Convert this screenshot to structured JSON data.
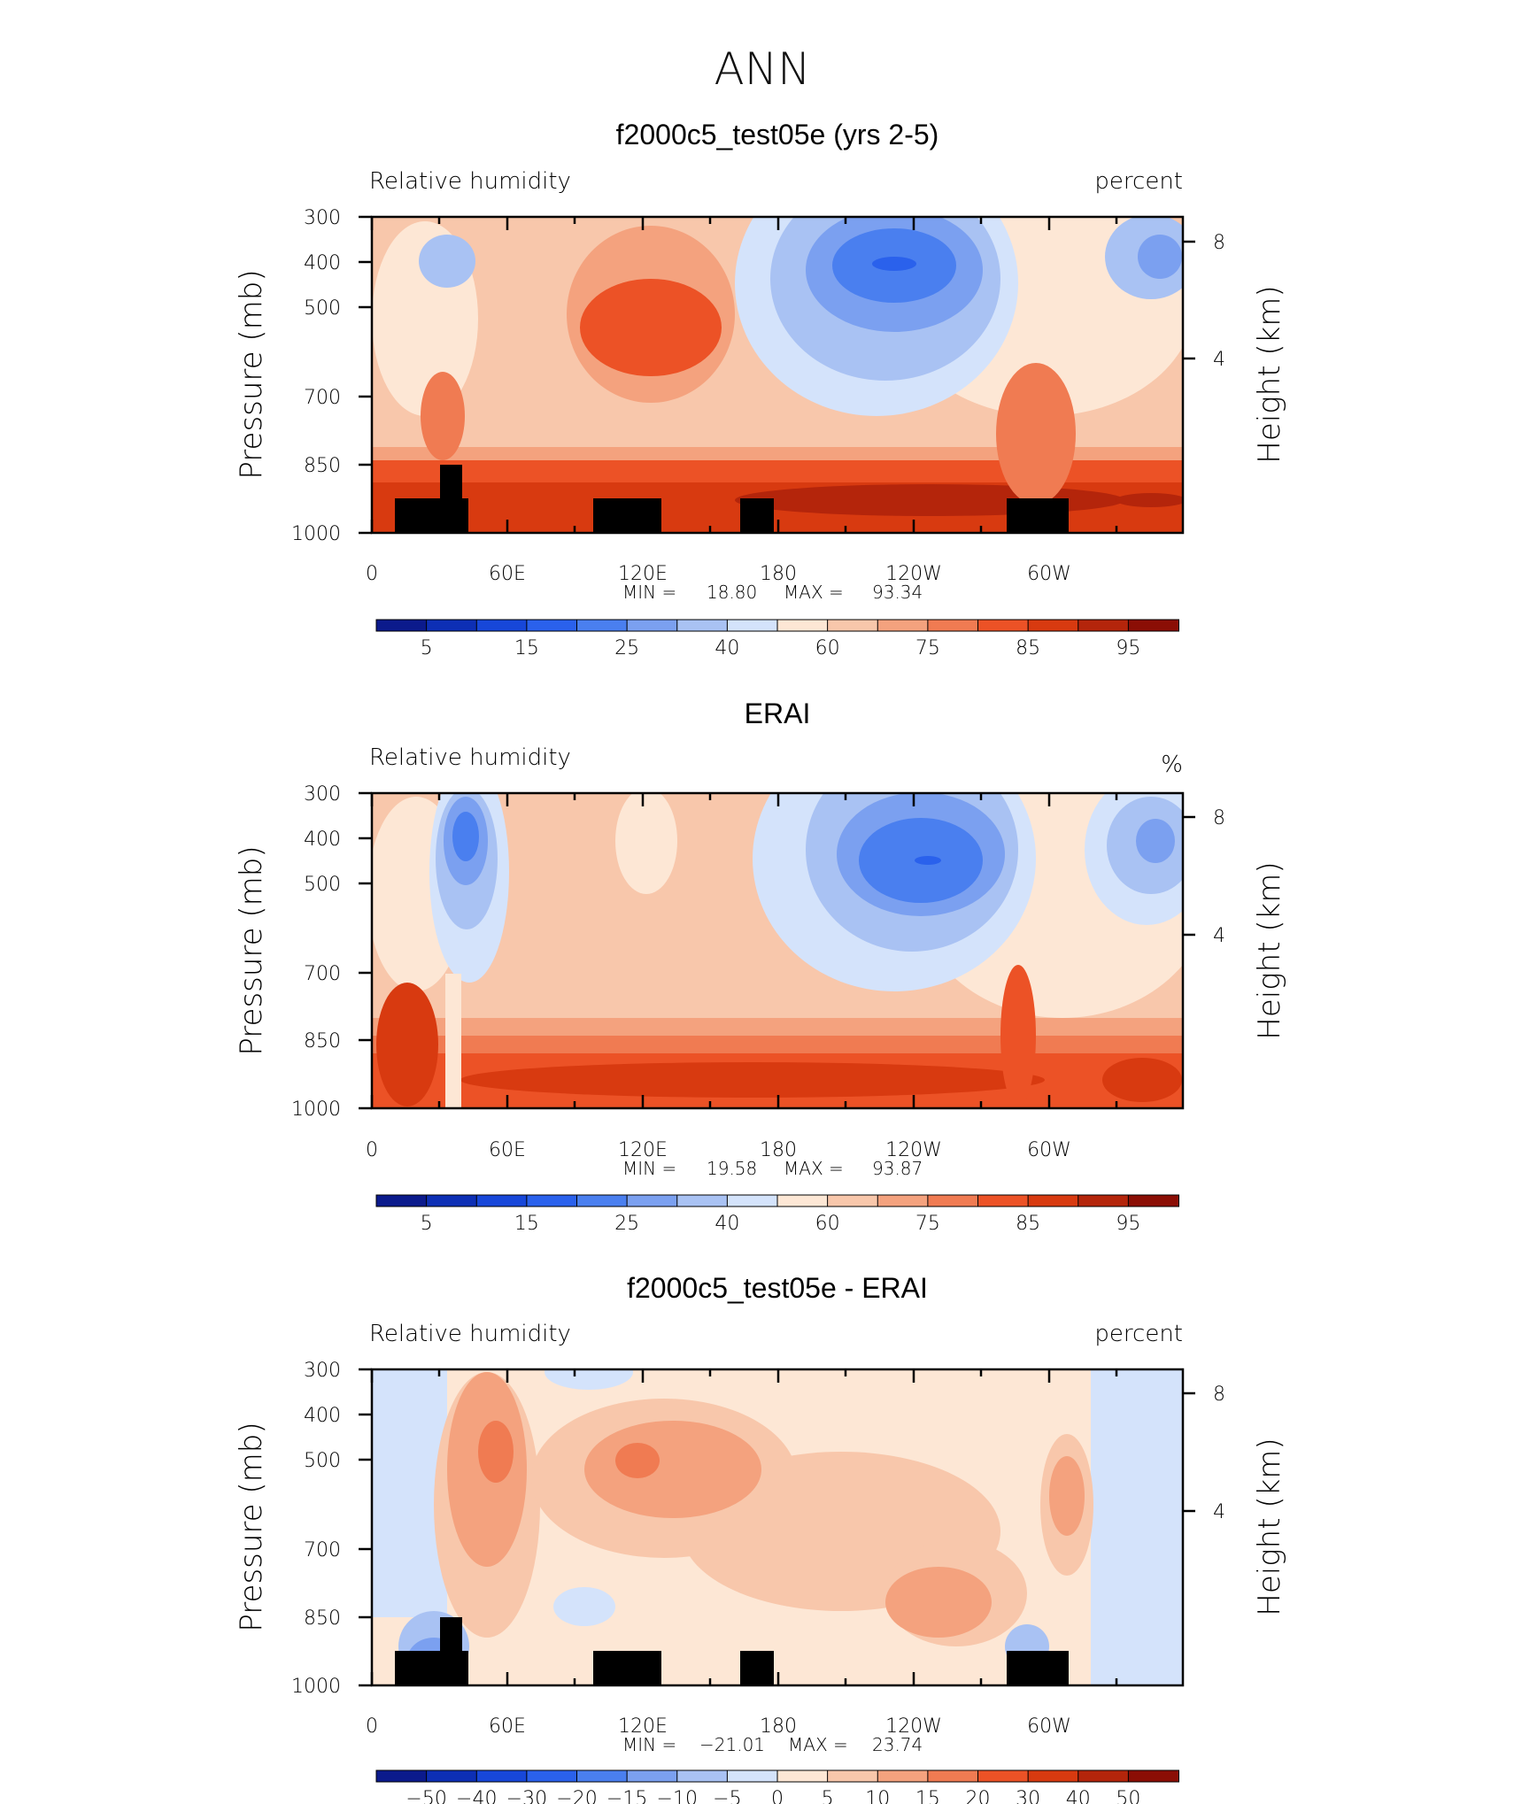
{
  "figure": {
    "title": "ANN"
  },
  "chart_data": [
    {
      "type": "heatmap",
      "title": "f2000c5_test05e (yrs 2-5)",
      "left_label": "Relative humidity",
      "right_label": "percent",
      "ylabel": "Pressure (mb)",
      "ylabel_right": "Height (km)",
      "x_ticks": [
        "0",
        "60E",
        "120E",
        "180",
        "120W",
        "60W"
      ],
      "y_ticks": [
        "300",
        "400",
        "500",
        "700",
        "850",
        "1000"
      ],
      "y_right_ticks": [
        "8",
        "4"
      ],
      "ylim": [
        1000,
        300
      ],
      "min_label": "MIN =",
      "min_value": "18.80",
      "max_label": "MAX =",
      "max_value": "93.34",
      "colorbar_labels": [
        "5",
        "15",
        "25",
        "40",
        "60",
        "75",
        "85",
        "95"
      ],
      "colorbar_colors": [
        "#0b1a8c",
        "#0d2fb5",
        "#1747d9",
        "#2a61ec",
        "#4a7fef",
        "#7ba0f0",
        "#a9c2f3",
        "#d4e3fb",
        "#fde7d5",
        "#f8c7ab",
        "#f4a27e",
        "#f07b52",
        "#ec5226",
        "#d83a10",
        "#b4250b",
        "#8b0e05"
      ]
    },
    {
      "type": "heatmap",
      "title": "ERAI",
      "left_label": "Relative humidity",
      "right_label": "%",
      "ylabel": "Pressure (mb)",
      "ylabel_right": "Height (km)",
      "x_ticks": [
        "0",
        "60E",
        "120E",
        "180",
        "120W",
        "60W"
      ],
      "y_ticks": [
        "300",
        "400",
        "500",
        "700",
        "850",
        "1000"
      ],
      "y_right_ticks": [
        "8",
        "4"
      ],
      "ylim": [
        1000,
        300
      ],
      "min_label": "MIN =",
      "min_value": "19.58",
      "max_label": "MAX =",
      "max_value": "93.87",
      "colorbar_labels": [
        "5",
        "15",
        "25",
        "40",
        "60",
        "75",
        "85",
        "95"
      ],
      "colorbar_colors": [
        "#0b1a8c",
        "#0d2fb5",
        "#1747d9",
        "#2a61ec",
        "#4a7fef",
        "#7ba0f0",
        "#a9c2f3",
        "#d4e3fb",
        "#fde7d5",
        "#f8c7ab",
        "#f4a27e",
        "#f07b52",
        "#ec5226",
        "#d83a10",
        "#b4250b",
        "#8b0e05"
      ]
    },
    {
      "type": "heatmap",
      "title": "f2000c5_test05e - ERAI",
      "left_label": "Relative humidity",
      "right_label": "percent",
      "ylabel": "Pressure (mb)",
      "ylabel_right": "Height (km)",
      "x_ticks": [
        "0",
        "60E",
        "120E",
        "180",
        "120W",
        "60W"
      ],
      "y_ticks": [
        "300",
        "400",
        "500",
        "700",
        "850",
        "1000"
      ],
      "y_right_ticks": [
        "8",
        "4"
      ],
      "ylim": [
        1000,
        300
      ],
      "min_label": "MIN =",
      "min_value": "−21.01",
      "max_label": "MAX =",
      "max_value": "23.74",
      "colorbar_labels": [
        "−50",
        "−40",
        "−30",
        "−20",
        "−15",
        "−10",
        "−5",
        "0",
        "5",
        "10",
        "15",
        "20",
        "30",
        "40",
        "50"
      ],
      "colorbar_colors": [
        "#0b1a8c",
        "#0d2fb5",
        "#1747d9",
        "#2a61ec",
        "#4a7fef",
        "#7ba0f0",
        "#a9c2f3",
        "#d4e3fb",
        "#fde7d5",
        "#f8c7ab",
        "#f4a27e",
        "#f07b52",
        "#ec5226",
        "#d83a10",
        "#b4250b",
        "#8b0e05"
      ]
    }
  ]
}
